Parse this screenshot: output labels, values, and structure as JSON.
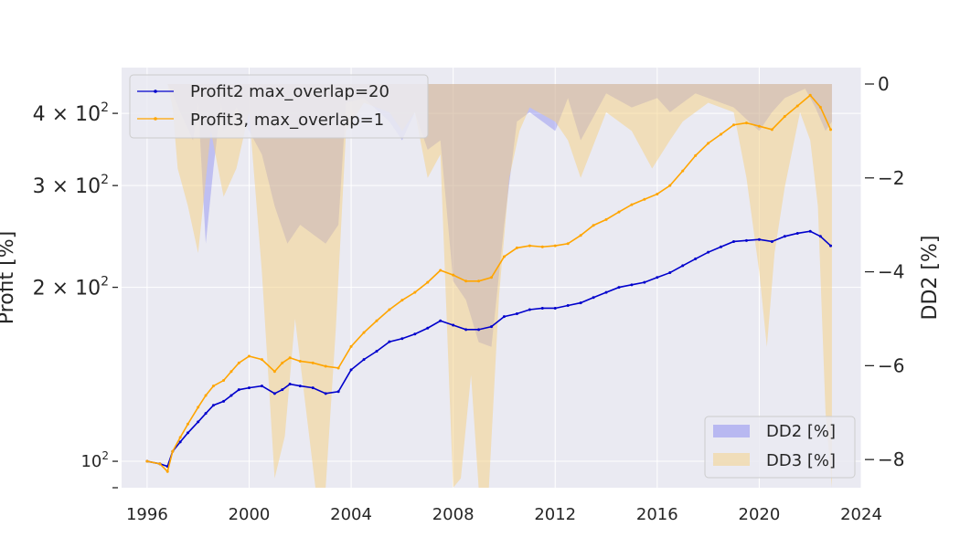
{
  "chart_data": {
    "type": "line",
    "title": "",
    "xlabel": "",
    "ylabel": "Profit [%]",
    "y2label": "DD2 [%]",
    "xlim": [
      1995,
      2024
    ],
    "ylim": [
      90,
      480
    ],
    "y_scale": "log",
    "y2lim": [
      -8.6,
      0.35
    ],
    "x_ticks": [
      "1996",
      "2000",
      "2004",
      "2008",
      "2012",
      "2016",
      "2020",
      "2024"
    ],
    "y_major_ticks": [
      {
        "value": 100,
        "base": "10",
        "exp": "2",
        "prefix": ""
      },
      {
        "value": 200,
        "base": "10",
        "exp": "2",
        "prefix": "2 × "
      },
      {
        "value": 300,
        "base": "10",
        "exp": "2",
        "prefix": "3 × "
      },
      {
        "value": 400,
        "base": "10",
        "exp": "2",
        "prefix": "4 × "
      }
    ],
    "y2_ticks": [
      {
        "value": 0,
        "label": "0"
      },
      {
        "value": -2,
        "label": "−2"
      },
      {
        "value": -4,
        "label": "−4"
      },
      {
        "value": -6,
        "label": "−6"
      },
      {
        "value": -8,
        "label": "−8"
      }
    ],
    "grid": true,
    "legend_top": "top-left",
    "legend_bottom": "bottom-right",
    "series": [
      {
        "name": "Profit2 max_overlap=20",
        "color": "#0000cc",
        "x": [
          1996.0,
          1996.5,
          1996.8,
          1997.0,
          1997.3,
          1997.6,
          1998.0,
          1998.3,
          1998.6,
          1999.0,
          1999.3,
          1999.6,
          2000.0,
          2000.5,
          2001.0,
          2001.3,
          2001.6,
          2002.0,
          2002.5,
          2003.0,
          2003.5,
          2004.0,
          2004.5,
          2005.0,
          2005.5,
          2006.0,
          2006.5,
          2007.0,
          2007.5,
          2008.0,
          2008.5,
          2009.0,
          2009.5,
          2010.0,
          2010.5,
          2011.0,
          2011.5,
          2012.0,
          2012.5,
          2013.0,
          2013.5,
          2014.0,
          2014.5,
          2015.0,
          2015.5,
          2016.0,
          2016.5,
          2017.0,
          2017.5,
          2018.0,
          2018.5,
          2019.0,
          2019.5,
          2020.0,
          2020.5,
          2021.0,
          2021.5,
          2022.0,
          2022.4,
          2022.8
        ],
        "y": [
          100,
          99,
          98,
          104,
          108,
          112,
          117,
          121,
          125,
          127,
          130,
          133,
          134,
          135,
          131,
          133,
          136,
          135,
          134,
          131,
          132,
          144,
          150,
          155,
          161,
          163,
          166,
          170,
          175,
          172,
          169,
          169,
          171,
          178,
          180,
          183,
          184,
          184,
          186,
          188,
          192,
          196,
          200,
          202,
          204,
          208,
          212,
          218,
          224,
          230,
          235,
          240,
          241,
          242,
          240,
          245,
          248,
          250,
          245,
          236
        ]
      },
      {
        "name": "Profit3, max_overlap=1",
        "color": "#ffa500",
        "x": [
          1996.0,
          1996.5,
          1996.8,
          1997.0,
          1997.3,
          1997.6,
          1998.0,
          1998.3,
          1998.6,
          1999.0,
          1999.3,
          1999.6,
          2000.0,
          2000.5,
          2001.0,
          2001.3,
          2001.6,
          2002.0,
          2002.5,
          2003.0,
          2003.5,
          2004.0,
          2004.5,
          2005.0,
          2005.5,
          2006.0,
          2006.5,
          2007.0,
          2007.5,
          2008.0,
          2008.5,
          2009.0,
          2009.5,
          2010.0,
          2010.5,
          2011.0,
          2011.5,
          2012.0,
          2012.5,
          2013.0,
          2013.5,
          2014.0,
          2014.5,
          2015.0,
          2015.5,
          2016.0,
          2016.5,
          2017.0,
          2017.5,
          2018.0,
          2018.5,
          2019.0,
          2019.5,
          2020.0,
          2020.5,
          2021.0,
          2021.5,
          2022.0,
          2022.4,
          2022.8
        ],
        "y": [
          100,
          99,
          96,
          104,
          110,
          116,
          124,
          130,
          135,
          138,
          143,
          148,
          152,
          150,
          143,
          148,
          151,
          149,
          148,
          146,
          145,
          158,
          167,
          175,
          183,
          190,
          196,
          204,
          214,
          210,
          205,
          205,
          208,
          226,
          234,
          236,
          235,
          236,
          238,
          246,
          256,
          262,
          270,
          278,
          284,
          290,
          300,
          318,
          338,
          355,
          368,
          382,
          385,
          380,
          375,
          395,
          412,
          430,
          410,
          375
        ]
      }
    ],
    "area_series": [
      {
        "name": "DD2 [%]",
        "color": "#6f6ff0",
        "x": [
          1995.8,
          1996.8,
          1997.0,
          1997.3,
          1997.8,
          1998.0,
          1998.3,
          1998.6,
          1998.9,
          1999.0,
          1999.5,
          2000.0,
          2000.5,
          2001.0,
          2001.5,
          2002.0,
          2002.5,
          2003.0,
          2003.5,
          2003.8,
          2004.5,
          2005.5,
          2006.0,
          2006.5,
          2007.0,
          2007.5,
          2008.0,
          2008.5,
          2009.0,
          2009.5,
          2010.0,
          2010.5,
          2011.0,
          2012.0,
          2012.5,
          2013.0,
          2014.0,
          2015.0,
          2016.0,
          2016.5,
          2017.0,
          2017.5,
          2018.0,
          2019.0,
          2019.6,
          2020.0,
          2020.5,
          2021.0,
          2021.8,
          2022.2,
          2022.6,
          2022.85
        ],
        "y": [
          0,
          0,
          -0.2,
          -0.6,
          -1.2,
          -0.4,
          -3.4,
          -1.8,
          -0.4,
          -1.0,
          -0.5,
          -1.0,
          -1.5,
          -2.6,
          -3.4,
          -3.0,
          -3.2,
          -3.4,
          -3.0,
          -0.4,
          -0.3,
          -0.8,
          -1.2,
          -0.6,
          -1.4,
          -1.2,
          -4.2,
          -4.6,
          -5.5,
          -5.6,
          -3.0,
          -0.8,
          -0.6,
          -1.0,
          -0.3,
          -1.2,
          -0.2,
          -0.5,
          -0.3,
          -0.6,
          -0.4,
          -0.2,
          -0.3,
          -0.5,
          -0.8,
          -1.0,
          -0.6,
          -0.3,
          -0.1,
          -0.5,
          -1.0,
          -0.8
        ]
      },
      {
        "name": "DD3 [%]",
        "color": "#f5cf80",
        "x": [
          1995.8,
          1996.8,
          1997.0,
          1997.2,
          1997.6,
          1998.0,
          1998.5,
          1999.0,
          1999.5,
          2000.0,
          2000.5,
          2001.0,
          2001.4,
          2001.8,
          2002.2,
          2002.6,
          2003.0,
          2003.4,
          2003.8,
          2004.5,
          2005.5,
          2006.0,
          2006.5,
          2007.0,
          2007.5,
          2008.0,
          2008.3,
          2008.7,
          2009.0,
          2009.4,
          2009.8,
          2010.2,
          2010.6,
          2011.0,
          2012.0,
          2012.5,
          2013.0,
          2014.0,
          2015.0,
          2015.8,
          2016.5,
          2017.0,
          2018.0,
          2019.0,
          2019.5,
          2020.0,
          2020.3,
          2020.6,
          2021.0,
          2021.6,
          2022.0,
          2022.3,
          2022.6,
          2022.85
        ],
        "y": [
          0,
          0,
          -0.5,
          -1.8,
          -2.6,
          -3.6,
          -1.0,
          -2.4,
          -1.8,
          -0.6,
          -4.0,
          -8.4,
          -7.5,
          -5.0,
          -6.8,
          -8.6,
          -8.6,
          -5.2,
          -1.0,
          -0.4,
          -0.6,
          -1.0,
          -0.6,
          -2.0,
          -1.5,
          -8.6,
          -8.4,
          -6.2,
          -8.6,
          -8.6,
          -4.5,
          -2.0,
          -1.0,
          -0.5,
          -0.8,
          -1.2,
          -2.0,
          -0.6,
          -1.0,
          -1.8,
          -1.2,
          -0.8,
          -0.4,
          -0.6,
          -2.0,
          -4.0,
          -5.6,
          -3.6,
          -2.2,
          -0.6,
          -1.2,
          -2.6,
          -7.0,
          -8.6
        ]
      }
    ]
  }
}
